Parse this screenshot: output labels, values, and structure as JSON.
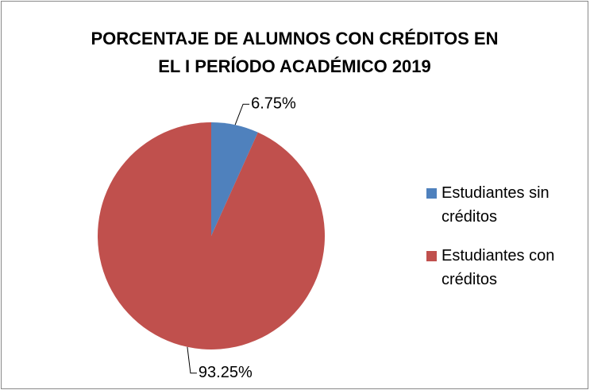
{
  "chart_data": {
    "type": "pie",
    "title": [
      "PORCENTAJE DE ALUMNOS CON CRÉDITOS EN",
      "EL I PERÍODO ACADÉMICO 2019"
    ],
    "categories": [
      "Estudiantes sin créditos",
      "Estudiantes con créditos"
    ],
    "values": [
      6.75,
      93.25
    ],
    "value_labels": [
      "6.75%",
      "93.25%"
    ],
    "colors": [
      "#4f81bd",
      "#c0504d"
    ],
    "legend": "right"
  }
}
